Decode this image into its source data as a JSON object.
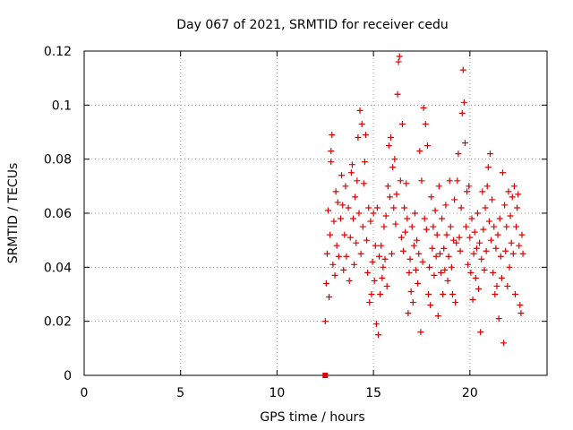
{
  "chart_data": {
    "type": "scatter",
    "title": "Day 067 of 2021, SRMTID for receiver cedu",
    "xlabel": "GPS time / hours",
    "ylabel": "SRMTID / TECUs",
    "xlim": [
      0,
      24
    ],
    "ylim": [
      0,
      0.12
    ],
    "xticks": [
      0,
      5,
      10,
      15,
      20
    ],
    "yticks": [
      0,
      0.02,
      0.04,
      0.06,
      0.08,
      0.1,
      0.12
    ],
    "xtick_labels": [
      "0",
      "5",
      "10",
      "15",
      "20"
    ],
    "ytick_labels": [
      "0",
      "0.02",
      "0.04",
      "0.06",
      "0.08",
      "0.1",
      "0.12"
    ],
    "grid": true,
    "marker": "plus",
    "color": "#dd0000",
    "series": [
      {
        "name": "SRMTID",
        "points": [
          [
            12.5,
            0.0
          ],
          [
            12.5,
            0.02
          ],
          [
            12.55,
            0.034
          ],
          [
            12.6,
            0.045
          ],
          [
            12.65,
            0.061
          ],
          [
            12.7,
            0.029
          ],
          [
            12.75,
            0.052
          ],
          [
            12.8,
            0.079
          ],
          [
            12.8,
            0.083
          ],
          [
            12.85,
            0.089
          ],
          [
            12.9,
            0.041
          ],
          [
            12.95,
            0.057
          ],
          [
            13.0,
            0.037
          ],
          [
            13.05,
            0.068
          ],
          [
            13.1,
            0.048
          ],
          [
            13.15,
            0.064
          ],
          [
            13.2,
            0.044
          ],
          [
            13.3,
            0.058
          ],
          [
            13.35,
            0.074
          ],
          [
            13.4,
            0.063
          ],
          [
            13.45,
            0.039
          ],
          [
            13.5,
            0.052
          ],
          [
            13.55,
            0.07
          ],
          [
            13.6,
            0.044
          ],
          [
            13.7,
            0.062
          ],
          [
            13.75,
            0.035
          ],
          [
            13.8,
            0.051
          ],
          [
            13.85,
            0.075
          ],
          [
            13.9,
            0.078
          ],
          [
            13.95,
            0.058
          ],
          [
            14.0,
            0.041
          ],
          [
            14.05,
            0.066
          ],
          [
            14.1,
            0.049
          ],
          [
            14.15,
            0.072
          ],
          [
            14.2,
            0.088
          ],
          [
            14.25,
            0.06
          ],
          [
            14.3,
            0.098
          ],
          [
            14.35,
            0.045
          ],
          [
            14.4,
            0.093
          ],
          [
            14.45,
            0.055
          ],
          [
            14.5,
            0.071
          ],
          [
            14.55,
            0.079
          ],
          [
            14.6,
            0.089
          ],
          [
            14.65,
            0.05
          ],
          [
            14.7,
            0.038
          ],
          [
            14.75,
            0.062
          ],
          [
            14.8,
            0.027
          ],
          [
            14.85,
            0.057
          ],
          [
            14.9,
            0.03
          ],
          [
            14.95,
            0.042
          ],
          [
            15.0,
            0.06
          ],
          [
            15.05,
            0.035
          ],
          [
            15.1,
            0.048
          ],
          [
            15.15,
            0.019
          ],
          [
            15.2,
            0.062
          ],
          [
            15.25,
            0.015
          ],
          [
            15.3,
            0.044
          ],
          [
            15.35,
            0.03
          ],
          [
            15.4,
            0.048
          ],
          [
            15.45,
            0.036
          ],
          [
            15.5,
            0.04
          ],
          [
            15.55,
            0.055
          ],
          [
            15.6,
            0.043
          ],
          [
            15.65,
            0.059
          ],
          [
            15.7,
            0.033
          ],
          [
            15.75,
            0.07
          ],
          [
            15.8,
            0.085
          ],
          [
            15.85,
            0.066
          ],
          [
            15.9,
            0.088
          ],
          [
            15.95,
            0.045
          ],
          [
            16.0,
            0.077
          ],
          [
            16.05,
            0.062
          ],
          [
            16.1,
            0.08
          ],
          [
            16.15,
            0.056
          ],
          [
            16.2,
            0.067
          ],
          [
            16.25,
            0.104
          ],
          [
            16.3,
            0.116
          ],
          [
            16.35,
            0.118
          ],
          [
            16.4,
            0.072
          ],
          [
            16.45,
            0.051
          ],
          [
            16.5,
            0.093
          ],
          [
            16.55,
            0.046
          ],
          [
            16.6,
            0.062
          ],
          [
            16.65,
            0.053
          ],
          [
            16.7,
            0.071
          ],
          [
            16.75,
            0.058
          ],
          [
            16.8,
            0.023
          ],
          [
            16.85,
            0.038
          ],
          [
            16.9,
            0.043
          ],
          [
            16.95,
            0.031
          ],
          [
            17.0,
            0.055
          ],
          [
            17.05,
            0.027
          ],
          [
            17.1,
            0.048
          ],
          [
            17.15,
            0.06
          ],
          [
            17.2,
            0.039
          ],
          [
            17.25,
            0.05
          ],
          [
            17.3,
            0.034
          ],
          [
            17.35,
            0.045
          ],
          [
            17.4,
            0.083
          ],
          [
            17.45,
            0.016
          ],
          [
            17.5,
            0.072
          ],
          [
            17.55,
            0.042
          ],
          [
            17.6,
            0.099
          ],
          [
            17.65,
            0.058
          ],
          [
            17.7,
            0.093
          ],
          [
            17.75,
            0.054
          ],
          [
            17.8,
            0.085
          ],
          [
            17.85,
            0.03
          ],
          [
            17.9,
            0.04
          ],
          [
            17.95,
            0.026
          ],
          [
            18.0,
            0.066
          ],
          [
            18.05,
            0.047
          ],
          [
            18.1,
            0.055
          ],
          [
            18.15,
            0.037
          ],
          [
            18.2,
            0.061
          ],
          [
            18.25,
            0.044
          ],
          [
            18.3,
            0.052
          ],
          [
            18.35,
            0.022
          ],
          [
            18.4,
            0.07
          ],
          [
            18.45,
            0.045
          ],
          [
            18.5,
            0.038
          ],
          [
            18.55,
            0.058
          ],
          [
            18.6,
            0.03
          ],
          [
            18.65,
            0.047
          ],
          [
            18.7,
            0.039
          ],
          [
            18.75,
            0.063
          ],
          [
            18.8,
            0.052
          ],
          [
            18.85,
            0.035
          ],
          [
            18.9,
            0.044
          ],
          [
            18.95,
            0.072
          ],
          [
            19.0,
            0.055
          ],
          [
            19.05,
            0.04
          ],
          [
            19.1,
            0.03
          ],
          [
            19.15,
            0.05
          ],
          [
            19.2,
            0.065
          ],
          [
            19.25,
            0.027
          ],
          [
            19.3,
            0.049
          ],
          [
            19.35,
            0.072
          ],
          [
            19.4,
            0.082
          ],
          [
            19.45,
            0.051
          ],
          [
            19.5,
            0.046
          ],
          [
            19.55,
            0.062
          ],
          [
            19.6,
            0.097
          ],
          [
            19.65,
            0.113
          ],
          [
            19.7,
            0.101
          ],
          [
            19.75,
            0.086
          ],
          [
            19.8,
            0.055
          ],
          [
            19.85,
            0.068
          ],
          [
            19.9,
            0.041
          ],
          [
            19.95,
            0.07
          ],
          [
            20.0,
            0.051
          ],
          [
            20.05,
            0.038
          ],
          [
            20.1,
            0.058
          ],
          [
            20.15,
            0.028
          ],
          [
            20.2,
            0.045
          ],
          [
            20.25,
            0.053
          ],
          [
            20.3,
            0.036
          ],
          [
            20.35,
            0.047
          ],
          [
            20.4,
            0.06
          ],
          [
            20.45,
            0.032
          ],
          [
            20.5,
            0.049
          ],
          [
            20.55,
            0.016
          ],
          [
            20.6,
            0.043
          ],
          [
            20.65,
            0.068
          ],
          [
            20.7,
            0.054
          ],
          [
            20.75,
            0.039
          ],
          [
            20.8,
            0.062
          ],
          [
            20.85,
            0.046
          ],
          [
            20.9,
            0.07
          ],
          [
            20.95,
            0.077
          ],
          [
            21.0,
            0.057
          ],
          [
            21.05,
            0.082
          ],
          [
            21.1,
            0.05
          ],
          [
            21.15,
            0.065
          ],
          [
            21.2,
            0.038
          ],
          [
            21.25,
            0.055
          ],
          [
            21.3,
            0.03
          ],
          [
            21.35,
            0.047
          ],
          [
            21.4,
            0.033
          ],
          [
            21.45,
            0.052
          ],
          [
            21.5,
            0.021
          ],
          [
            21.55,
            0.058
          ],
          [
            21.6,
            0.044
          ],
          [
            21.65,
            0.036
          ],
          [
            21.7,
            0.075
          ],
          [
            21.75,
            0.012
          ],
          [
            21.8,
            0.063
          ],
          [
            21.85,
            0.046
          ],
          [
            21.9,
            0.055
          ],
          [
            21.95,
            0.033
          ],
          [
            22.0,
            0.068
          ],
          [
            22.05,
            0.04
          ],
          [
            22.1,
            0.059
          ],
          [
            22.15,
            0.049
          ],
          [
            22.2,
            0.066
          ],
          [
            22.25,
            0.045
          ],
          [
            22.3,
            0.07
          ],
          [
            22.35,
            0.03
          ],
          [
            22.4,
            0.055
          ],
          [
            22.45,
            0.062
          ],
          [
            22.5,
            0.067
          ],
          [
            22.55,
            0.048
          ],
          [
            22.6,
            0.026
          ],
          [
            22.65,
            0.023
          ],
          [
            22.7,
            0.052
          ],
          [
            22.75,
            0.045
          ]
        ]
      }
    ]
  }
}
